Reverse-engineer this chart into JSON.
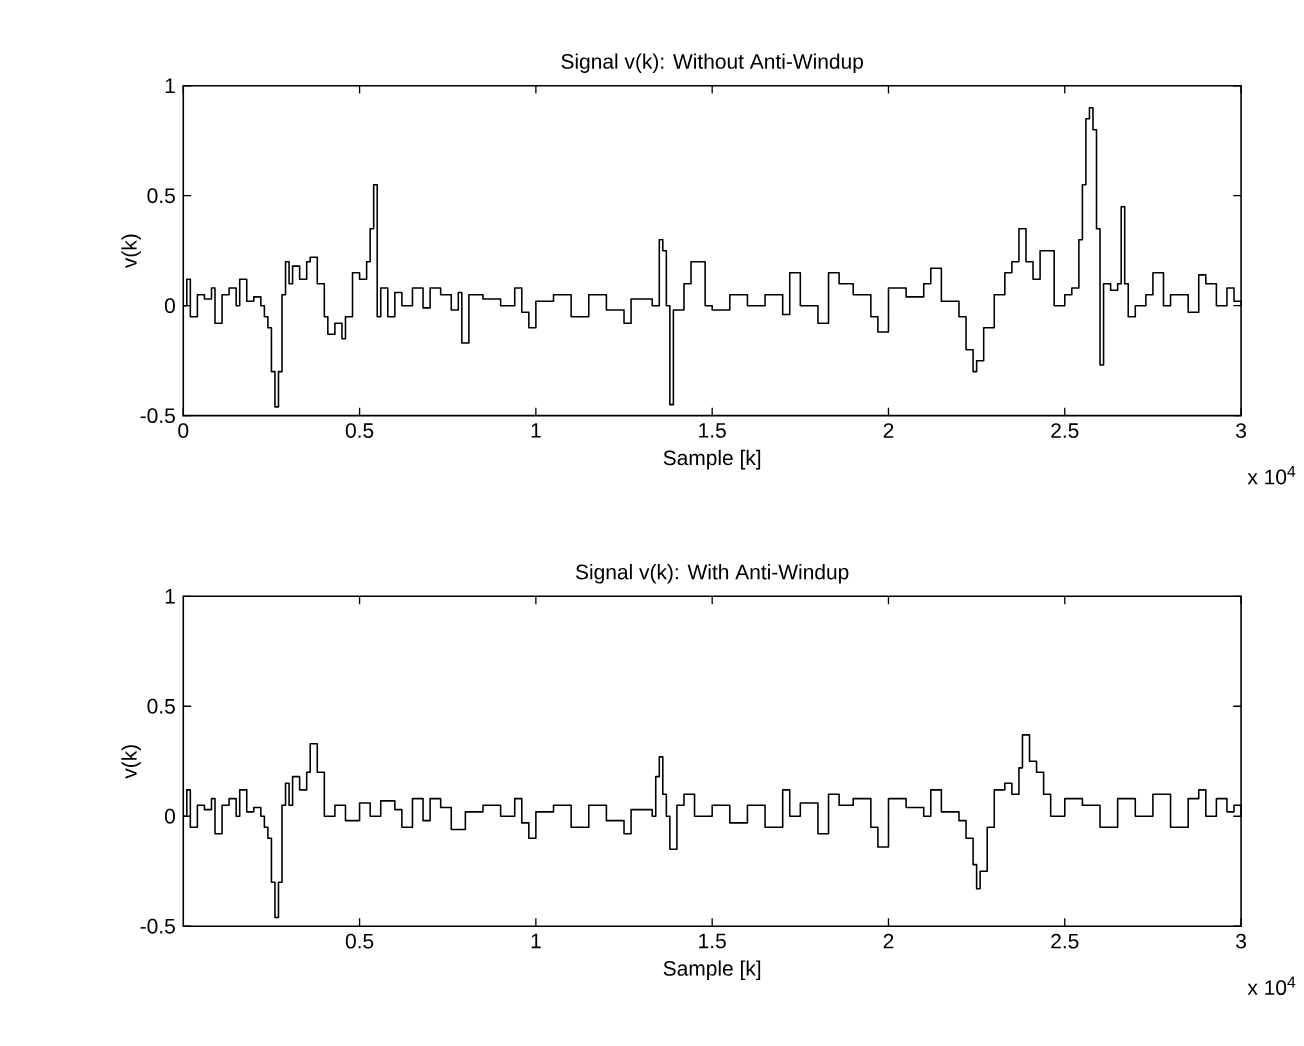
{
  "chart_data": [
    {
      "type": "step",
      "title": "Signal v(k): Without Anti-Windup",
      "xlabel": "Sample [k]",
      "ylabel": "v(k)",
      "annotations": [
        "x 10$^{4}$"
      ],
      "xlim": [
        0,
        3
      ],
      "ylim": [
        -0.5,
        1
      ],
      "xticks": [
        0,
        0.5,
        1,
        1.5,
        2,
        2.5,
        3
      ],
      "yticks": [
        -0.5,
        0,
        0.5,
        1
      ],
      "color": "#000000",
      "x": [
        0,
        0.01,
        0.02,
        0.04,
        0.06,
        0.08,
        0.09,
        0.11,
        0.13,
        0.15,
        0.16,
        0.18,
        0.2,
        0.22,
        0.23,
        0.24,
        0.25,
        0.26,
        0.27,
        0.28,
        0.29,
        0.3,
        0.31,
        0.33,
        0.35,
        0.36,
        0.38,
        0.4,
        0.41,
        0.43,
        0.45,
        0.46,
        0.48,
        0.5,
        0.52,
        0.53,
        0.54,
        0.55,
        0.56,
        0.58,
        0.6,
        0.62,
        0.65,
        0.68,
        0.7,
        0.73,
        0.76,
        0.78,
        0.79,
        0.81,
        0.85,
        0.9,
        0.94,
        0.96,
        0.98,
        1.0,
        1.05,
        1.1,
        1.15,
        1.2,
        1.25,
        1.27,
        1.3,
        1.33,
        1.35,
        1.36,
        1.37,
        1.38,
        1.39,
        1.42,
        1.44,
        1.46,
        1.48,
        1.5,
        1.55,
        1.6,
        1.65,
        1.7,
        1.72,
        1.75,
        1.8,
        1.83,
        1.86,
        1.9,
        1.95,
        1.97,
        2.0,
        2.05,
        2.1,
        2.12,
        2.15,
        2.2,
        2.22,
        2.24,
        2.25,
        2.27,
        2.3,
        2.33,
        2.35,
        2.37,
        2.39,
        2.41,
        2.43,
        2.45,
        2.47,
        2.5,
        2.52,
        2.54,
        2.55,
        2.56,
        2.57,
        2.58,
        2.59,
        2.6,
        2.61,
        2.63,
        2.65,
        2.66,
        2.67,
        2.68,
        2.7,
        2.73,
        2.75,
        2.78,
        2.8,
        2.85,
        2.88,
        2.9,
        2.93,
        2.96,
        2.98,
        3.0
      ],
      "values": [
        0,
        0.12,
        -0.05,
        0.05,
        0.03,
        0.08,
        -0.08,
        0.05,
        0.08,
        0.0,
        0.12,
        0.02,
        0.04,
        0.0,
        -0.05,
        -0.1,
        -0.3,
        -0.46,
        -0.3,
        0.05,
        0.2,
        0.1,
        0.18,
        0.12,
        0.2,
        0.22,
        0.1,
        -0.05,
        -0.13,
        -0.08,
        -0.15,
        -0.05,
        0.15,
        0.12,
        0.2,
        0.35,
        0.55,
        -0.05,
        0.08,
        -0.05,
        0.06,
        0.0,
        0.08,
        -0.01,
        0.08,
        0.05,
        -0.02,
        0.06,
        -0.17,
        0.05,
        0.03,
        0.0,
        0.08,
        -0.03,
        -0.1,
        0.02,
        0.05,
        -0.05,
        0.05,
        -0.02,
        -0.08,
        0.03,
        0.03,
        0.0,
        0.3,
        0.25,
        0.0,
        -0.45,
        -0.02,
        0.1,
        0.2,
        0.2,
        0.0,
        -0.02,
        0.05,
        0.0,
        0.05,
        -0.04,
        0.15,
        0.0,
        -0.08,
        0.15,
        0.1,
        0.05,
        -0.05,
        -0.12,
        0.08,
        0.04,
        0.1,
        0.17,
        0.02,
        -0.05,
        -0.2,
        -0.3,
        -0.25,
        -0.1,
        0.05,
        0.15,
        0.2,
        0.35,
        0.2,
        0.12,
        0.25,
        0.25,
        0.0,
        0.05,
        0.08,
        0.3,
        0.55,
        0.85,
        0.9,
        0.8,
        0.35,
        -0.27,
        0.1,
        0.07,
        0.1,
        0.45,
        0.1,
        -0.05,
        0.0,
        0.05,
        0.15,
        0.0,
        0.05,
        -0.03,
        0.14,
        0.1,
        0.0,
        0.08,
        0.02,
        0.0
      ]
    },
    {
      "type": "step",
      "title": "Signal v(k): With Anti-Windup",
      "xlabel": "Sample [k]",
      "ylabel": "v(k)",
      "annotations": [
        "x 10$^{4}$"
      ],
      "xlim": [
        0,
        3
      ],
      "ylim": [
        -0.5,
        1
      ],
      "xticks": [
        0.5,
        1,
        1.5,
        2,
        2.5,
        3
      ],
      "yticks": [
        -0.5,
        0,
        0.5,
        1
      ],
      "color": "#000000",
      "x": [
        0,
        0.01,
        0.02,
        0.04,
        0.06,
        0.08,
        0.09,
        0.11,
        0.13,
        0.15,
        0.16,
        0.18,
        0.2,
        0.22,
        0.23,
        0.24,
        0.25,
        0.26,
        0.27,
        0.28,
        0.29,
        0.3,
        0.31,
        0.33,
        0.35,
        0.36,
        0.38,
        0.4,
        0.43,
        0.46,
        0.5,
        0.53,
        0.56,
        0.6,
        0.62,
        0.65,
        0.68,
        0.7,
        0.73,
        0.76,
        0.8,
        0.85,
        0.9,
        0.94,
        0.96,
        0.98,
        1.0,
        1.05,
        1.1,
        1.15,
        1.2,
        1.25,
        1.27,
        1.3,
        1.33,
        1.34,
        1.35,
        1.36,
        1.37,
        1.38,
        1.4,
        1.42,
        1.45,
        1.5,
        1.55,
        1.6,
        1.65,
        1.7,
        1.72,
        1.75,
        1.8,
        1.83,
        1.86,
        1.9,
        1.95,
        1.97,
        2.0,
        2.05,
        2.1,
        2.12,
        2.15,
        2.2,
        2.22,
        2.24,
        2.25,
        2.26,
        2.28,
        2.3,
        2.33,
        2.35,
        2.37,
        2.38,
        2.4,
        2.42,
        2.44,
        2.46,
        2.5,
        2.55,
        2.6,
        2.65,
        2.7,
        2.75,
        2.8,
        2.85,
        2.88,
        2.9,
        2.93,
        2.96,
        2.98,
        3.0
      ],
      "values": [
        0,
        0.12,
        -0.05,
        0.05,
        0.03,
        0.08,
        -0.08,
        0.05,
        0.08,
        0.0,
        0.12,
        0.02,
        0.04,
        0.0,
        -0.05,
        -0.1,
        -0.3,
        -0.46,
        -0.3,
        0.05,
        0.15,
        0.05,
        0.18,
        0.12,
        0.2,
        0.33,
        0.2,
        0.0,
        0.05,
        -0.02,
        0.06,
        0.0,
        0.07,
        0.03,
        -0.05,
        0.08,
        -0.02,
        0.08,
        0.04,
        -0.06,
        0.02,
        0.05,
        0.0,
        0.08,
        -0.03,
        -0.1,
        0.02,
        0.05,
        -0.05,
        0.05,
        -0.02,
        -0.08,
        0.03,
        0.03,
        0.0,
        0.18,
        0.27,
        0.1,
        0.0,
        -0.15,
        0.05,
        0.1,
        0.0,
        0.05,
        -0.03,
        0.05,
        -0.05,
        0.12,
        0.0,
        0.06,
        -0.08,
        0.1,
        0.05,
        0.08,
        -0.05,
        -0.14,
        0.08,
        0.04,
        0.0,
        0.12,
        0.02,
        -0.02,
        -0.1,
        -0.22,
        -0.33,
        -0.25,
        -0.05,
        0.12,
        0.15,
        0.1,
        0.22,
        0.37,
        0.25,
        0.2,
        0.1,
        0.0,
        0.08,
        0.05,
        -0.05,
        0.08,
        0.0,
        0.1,
        -0.05,
        0.08,
        0.12,
        0.0,
        0.08,
        0.02,
        0.05,
        0.0
      ]
    }
  ]
}
